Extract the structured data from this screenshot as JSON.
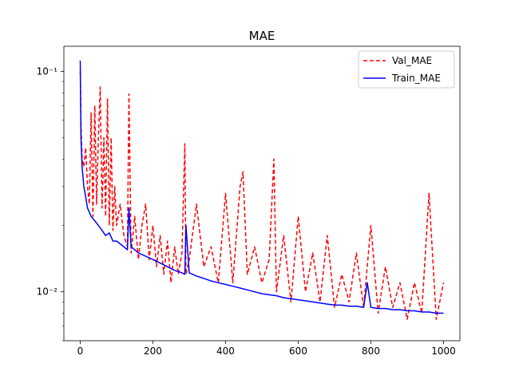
{
  "chart_data": {
    "type": "line",
    "title": "MAE",
    "xlabel": "",
    "ylabel": "",
    "xlim": [
      -45,
      1045
    ],
    "ylim": [
      0.006,
      0.13
    ],
    "yscale": "log",
    "x_ticks": [
      0,
      200,
      400,
      600,
      800,
      1000
    ],
    "x_tick_labels": [
      "0",
      "200",
      "400",
      "600",
      "800",
      "1000"
    ],
    "y_ticks": [
      0.01,
      0.1
    ],
    "y_tick_labels": [
      "10⁻²",
      "10⁻¹"
    ],
    "grid": false,
    "legend_position": "top-right",
    "series": [
      {
        "name": "Val_MAE",
        "color": "#ff0000",
        "style": "dashed",
        "x": [
          0,
          2,
          5,
          10,
          15,
          20,
          25,
          30,
          35,
          40,
          45,
          50,
          55,
          60,
          65,
          70,
          75,
          80,
          85,
          90,
          95,
          100,
          110,
          120,
          130,
          134,
          140,
          150,
          160,
          170,
          180,
          190,
          200,
          210,
          220,
          230,
          240,
          250,
          260,
          270,
          280,
          288,
          291,
          300,
          320,
          340,
          360,
          380,
          400,
          420,
          440,
          448,
          460,
          480,
          500,
          520,
          533,
          540,
          560,
          580,
          600,
          620,
          640,
          660,
          680,
          700,
          720,
          740,
          760,
          780,
          800,
          820,
          840,
          860,
          880,
          900,
          920,
          940,
          960,
          980,
          1000
        ],
        "y": [
          0.1,
          0.06,
          0.04,
          0.037,
          0.045,
          0.03,
          0.025,
          0.065,
          0.022,
          0.07,
          0.025,
          0.05,
          0.085,
          0.024,
          0.05,
          0.022,
          0.075,
          0.02,
          0.05,
          0.019,
          0.03,
          0.02,
          0.025,
          0.018,
          0.016,
          0.079,
          0.015,
          0.022,
          0.014,
          0.02,
          0.025,
          0.014,
          0.02,
          0.013,
          0.018,
          0.012,
          0.017,
          0.011,
          0.016,
          0.012,
          0.015,
          0.047,
          0.012,
          0.014,
          0.025,
          0.013,
          0.016,
          0.011,
          0.028,
          0.011,
          0.03,
          0.035,
          0.012,
          0.016,
          0.011,
          0.014,
          0.04,
          0.01,
          0.018,
          0.009,
          0.022,
          0.01,
          0.015,
          0.009,
          0.018,
          0.0085,
          0.012,
          0.009,
          0.015,
          0.0085,
          0.02,
          0.008,
          0.013,
          0.0085,
          0.011,
          0.0075,
          0.011,
          0.008,
          0.028,
          0.0075,
          0.011
        ]
      },
      {
        "name": "Train_MAE",
        "color": "#0000ff",
        "style": "solid",
        "x": [
          0,
          2,
          5,
          10,
          15,
          20,
          30,
          40,
          50,
          60,
          70,
          80,
          90,
          100,
          110,
          120,
          130,
          134,
          140,
          150,
          160,
          180,
          200,
          220,
          240,
          260,
          280,
          288,
          291,
          300,
          320,
          340,
          360,
          380,
          400,
          420,
          440,
          460,
          480,
          500,
          520,
          540,
          560,
          580,
          600,
          620,
          640,
          660,
          680,
          700,
          720,
          740,
          760,
          780,
          790,
          800,
          820,
          840,
          860,
          880,
          900,
          920,
          940,
          960,
          980,
          1000
        ],
        "y": [
          0.112,
          0.05,
          0.037,
          0.03,
          0.027,
          0.024,
          0.022,
          0.021,
          0.02,
          0.019,
          0.018,
          0.0185,
          0.017,
          0.017,
          0.0165,
          0.016,
          0.0155,
          0.024,
          0.016,
          0.0155,
          0.015,
          0.0145,
          0.014,
          0.0135,
          0.013,
          0.0125,
          0.0122,
          0.012,
          0.02,
          0.0122,
          0.0118,
          0.0115,
          0.0112,
          0.011,
          0.0108,
          0.0106,
          0.0104,
          0.0102,
          0.01,
          0.0098,
          0.0097,
          0.0096,
          0.0094,
          0.0093,
          0.0092,
          0.0091,
          0.009,
          0.0089,
          0.0088,
          0.0087,
          0.0087,
          0.0086,
          0.0086,
          0.0085,
          0.011,
          0.0085,
          0.0084,
          0.0084,
          0.0083,
          0.0083,
          0.0082,
          0.0082,
          0.0081,
          0.0081,
          0.008,
          0.008
        ]
      }
    ]
  }
}
